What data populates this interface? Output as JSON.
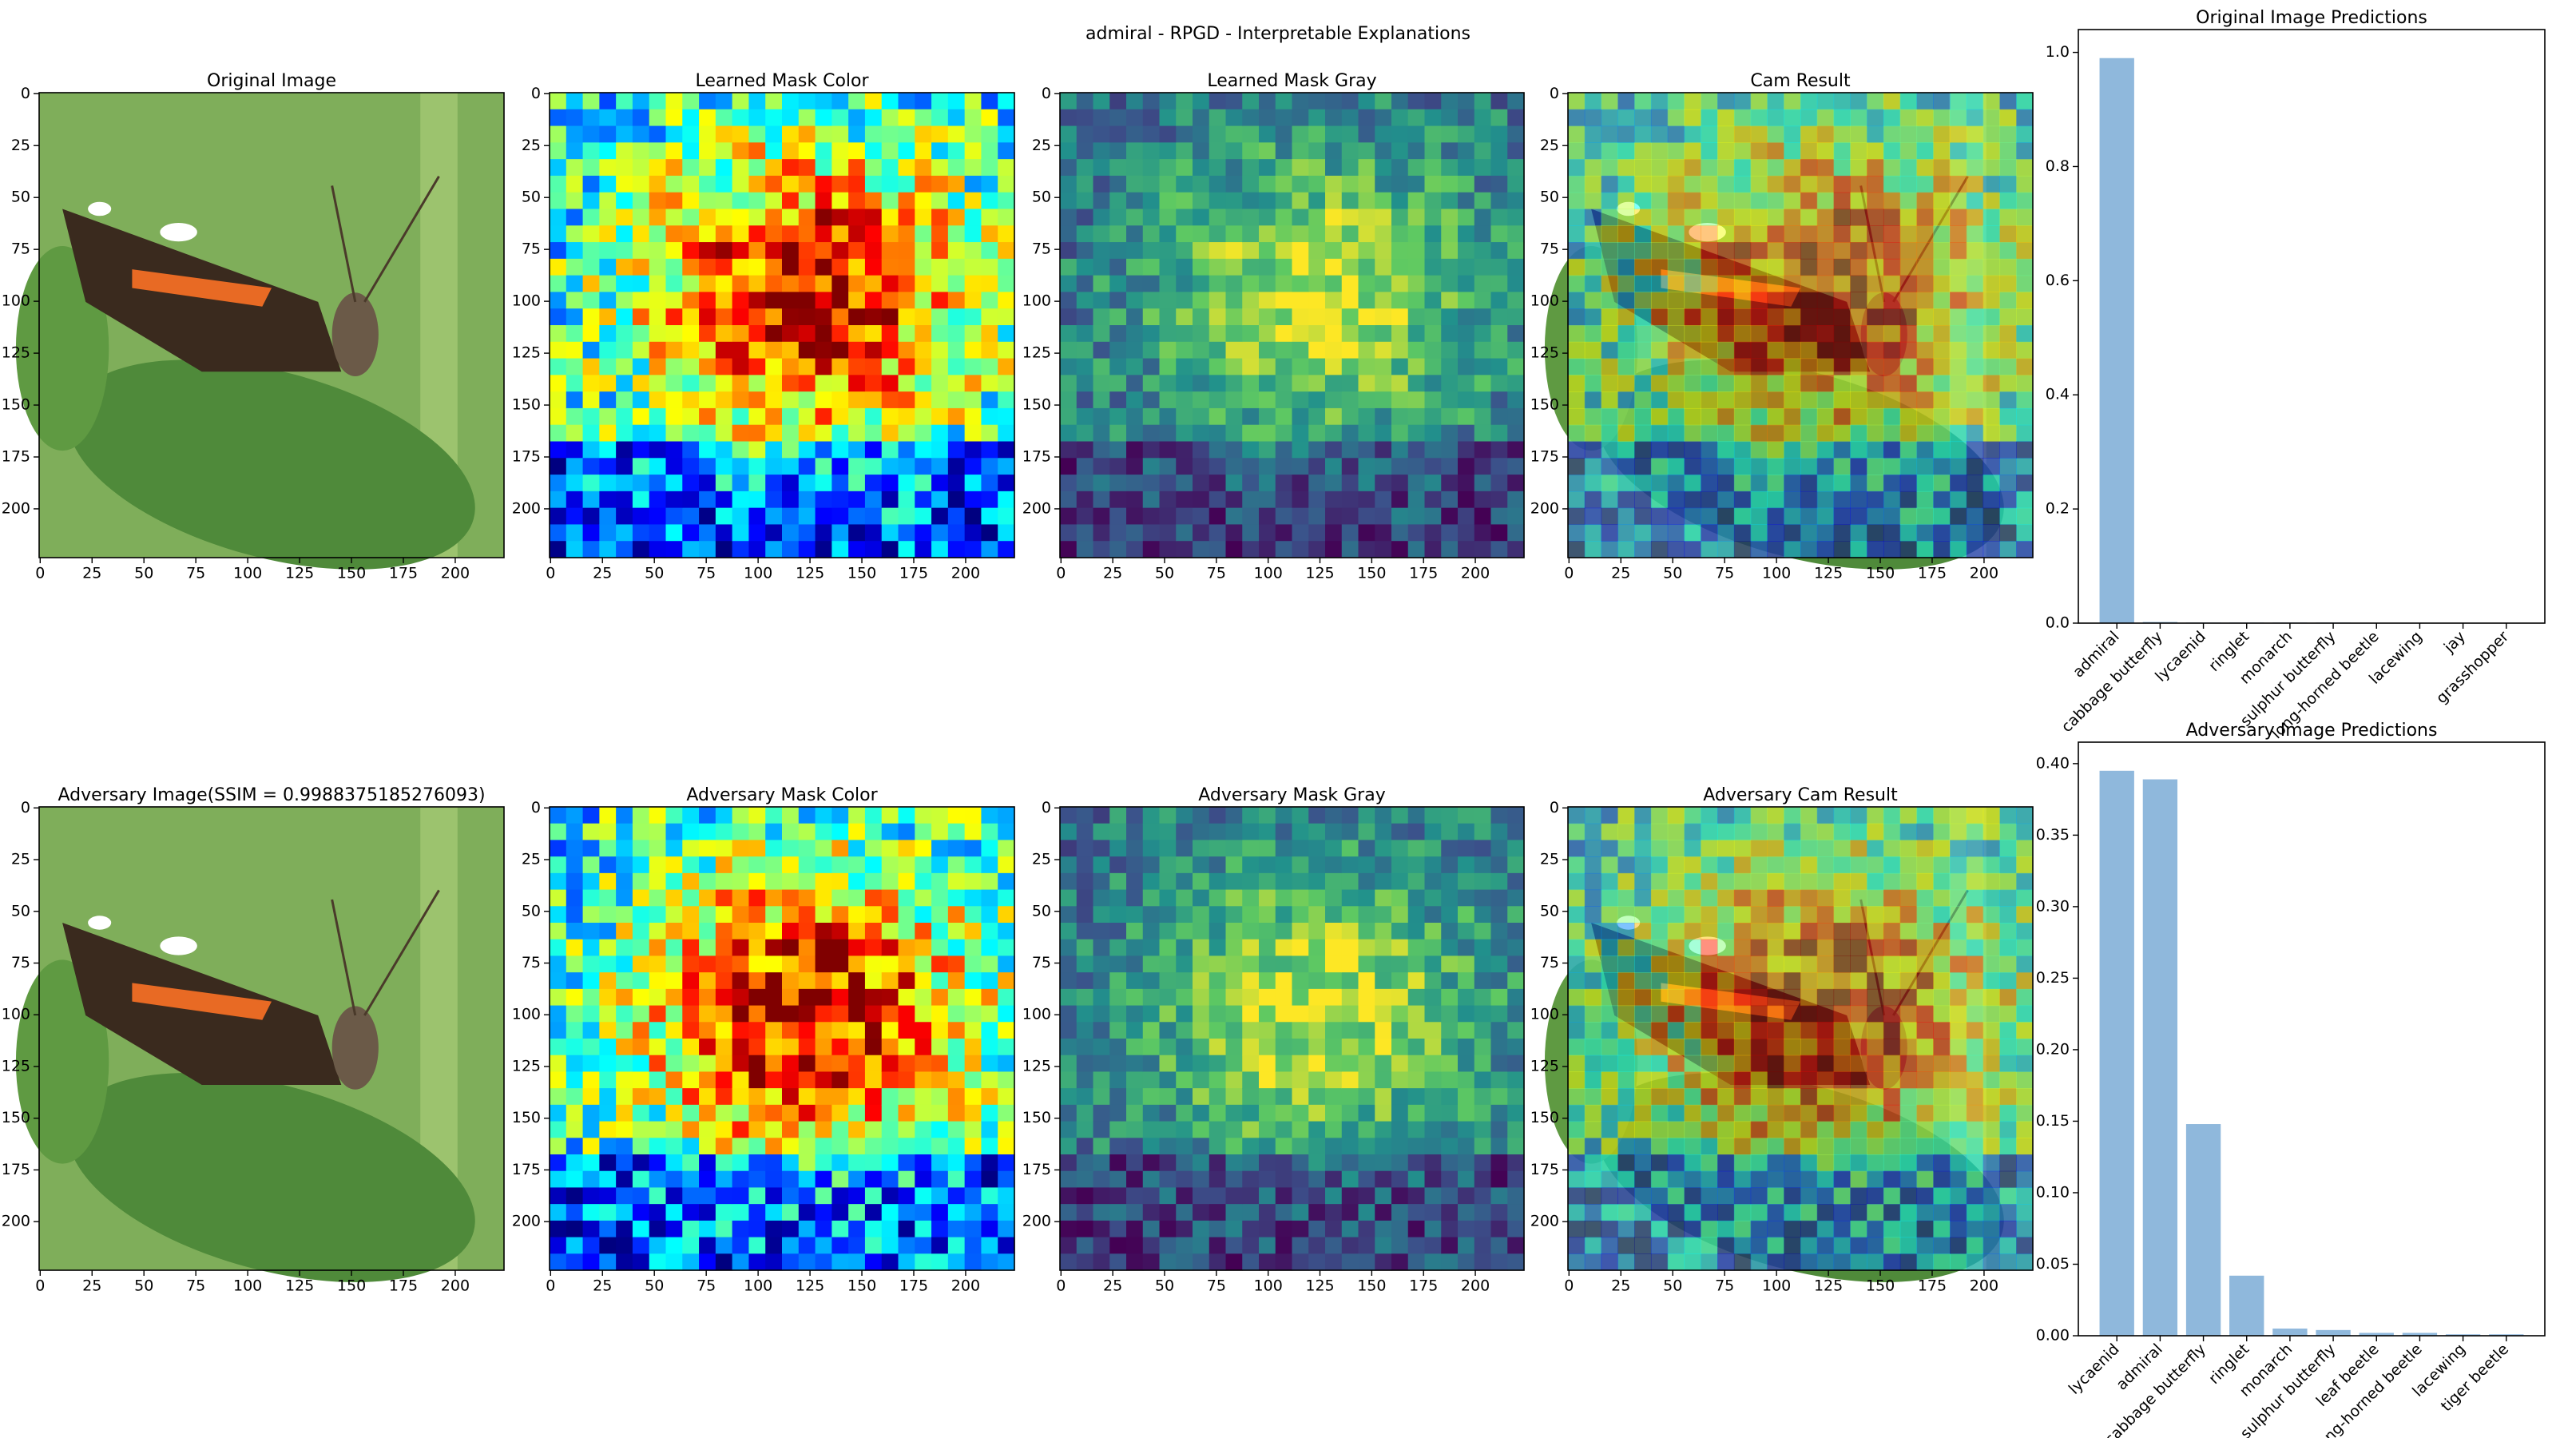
{
  "title": "admiral - RPGD - Interpretable Explanations",
  "chart_data": [
    {
      "type": "image",
      "title": "Original Image",
      "cmap": "photo",
      "xlim": [
        -0.5,
        223.5
      ],
      "ylim": [
        223.5,
        -0.5
      ],
      "xticks": [
        0,
        25,
        50,
        75,
        100,
        125,
        150,
        175,
        200
      ],
      "yticks": [
        0,
        25,
        50,
        75,
        100,
        125,
        150,
        175,
        200
      ]
    },
    {
      "type": "image",
      "title": "Learned Mask Color",
      "cmap": "jet",
      "xlim": [
        -0.5,
        223.5
      ],
      "ylim": [
        223.5,
        -0.5
      ],
      "xticks": [
        0,
        25,
        50,
        75,
        100,
        125,
        150,
        175,
        200
      ],
      "yticks": [
        0,
        25,
        50,
        75,
        100,
        125,
        150,
        175,
        200
      ]
    },
    {
      "type": "image",
      "title": "Learned Mask Gray",
      "cmap": "viridis",
      "xlim": [
        -0.5,
        223.5
      ],
      "ylim": [
        223.5,
        -0.5
      ],
      "xticks": [
        0,
        25,
        50,
        75,
        100,
        125,
        150,
        175,
        200
      ],
      "yticks": [
        0,
        25,
        50,
        75,
        100,
        125,
        150,
        175,
        200
      ]
    },
    {
      "type": "image",
      "title": "Cam Result",
      "cmap": "overlay",
      "xlim": [
        -0.5,
        223.5
      ],
      "ylim": [
        223.5,
        -0.5
      ],
      "xticks": [
        0,
        25,
        50,
        75,
        100,
        125,
        150,
        175,
        200
      ],
      "yticks": [
        0,
        25,
        50,
        75,
        100,
        125,
        150,
        175,
        200
      ]
    },
    {
      "type": "bar",
      "title": "Original Image Predictions",
      "color": "#8fb8dc",
      "categories": [
        "admiral",
        "cabbage butterfly",
        "lycaenid",
        "ringlet",
        "monarch",
        "sulphur butterfly",
        "long-horned beetle",
        "lacewing",
        "jay",
        "grasshopper"
      ],
      "values": [
        0.99,
        0.002,
        0.001,
        0.001,
        0.001,
        0.001,
        0.0005,
        0.0005,
        0.0005,
        0.0005
      ],
      "ylim": [
        0,
        1.04
      ],
      "yticks": [
        {
          "value": 0,
          "label": "0.0"
        },
        0.2,
        0.4,
        0.6,
        0.8,
        {
          "value": 1,
          "label": "1.0"
        }
      ]
    },
    {
      "type": "image",
      "title": "Adversary Image(SSIM = 0.9988375185276093)",
      "cmap": "photo",
      "xlim": [
        -0.5,
        223.5
      ],
      "ylim": [
        223.5,
        -0.5
      ],
      "xticks": [
        0,
        25,
        50,
        75,
        100,
        125,
        150,
        175,
        200
      ],
      "yticks": [
        0,
        25,
        50,
        75,
        100,
        125,
        150,
        175,
        200
      ]
    },
    {
      "type": "image",
      "title": "Adversary Mask Color",
      "cmap": "jet",
      "xlim": [
        -0.5,
        223.5
      ],
      "ylim": [
        223.5,
        -0.5
      ],
      "xticks": [
        0,
        25,
        50,
        75,
        100,
        125,
        150,
        175,
        200
      ],
      "yticks": [
        0,
        25,
        50,
        75,
        100,
        125,
        150,
        175,
        200
      ]
    },
    {
      "type": "image",
      "title": "Adversary Mask Gray",
      "cmap": "viridis",
      "xlim": [
        -0.5,
        223.5
      ],
      "ylim": [
        223.5,
        -0.5
      ],
      "xticks": [
        0,
        25,
        50,
        75,
        100,
        125,
        150,
        175,
        200
      ],
      "yticks": [
        0,
        25,
        50,
        75,
        100,
        125,
        150,
        175,
        200
      ]
    },
    {
      "type": "image",
      "title": "Adversary Cam Result",
      "cmap": "overlay",
      "xlim": [
        -0.5,
        223.5
      ],
      "ylim": [
        223.5,
        -0.5
      ],
      "xticks": [
        0,
        25,
        50,
        75,
        100,
        125,
        150,
        175,
        200
      ],
      "yticks": [
        0,
        25,
        50,
        75,
        100,
        125,
        150,
        175,
        200
      ]
    },
    {
      "type": "bar",
      "title": "Adversary Image Predictions",
      "color": "#8fb8dc",
      "categories": [
        "lycaenid",
        "admiral",
        "cabbage butterfly",
        "ringlet",
        "monarch",
        "sulphur butterfly",
        "leaf beetle",
        "long-horned beetle",
        "lacewing",
        "tiger beetle"
      ],
      "values": [
        0.395,
        0.389,
        0.148,
        0.042,
        0.005,
        0.004,
        0.002,
        0.002,
        0.001,
        0.001
      ],
      "ylim": [
        0,
        0.415
      ],
      "yticks": [
        {
          "value": 0,
          "label": "0.00"
        },
        0.05,
        {
          "value": 0.1,
          "label": "0.10"
        },
        0.15,
        {
          "value": 0.2,
          "label": "0.20"
        },
        0.25,
        {
          "value": 0.3,
          "label": "0.30"
        },
        0.35,
        {
          "value": 0.4,
          "label": "0.40"
        }
      ]
    }
  ]
}
